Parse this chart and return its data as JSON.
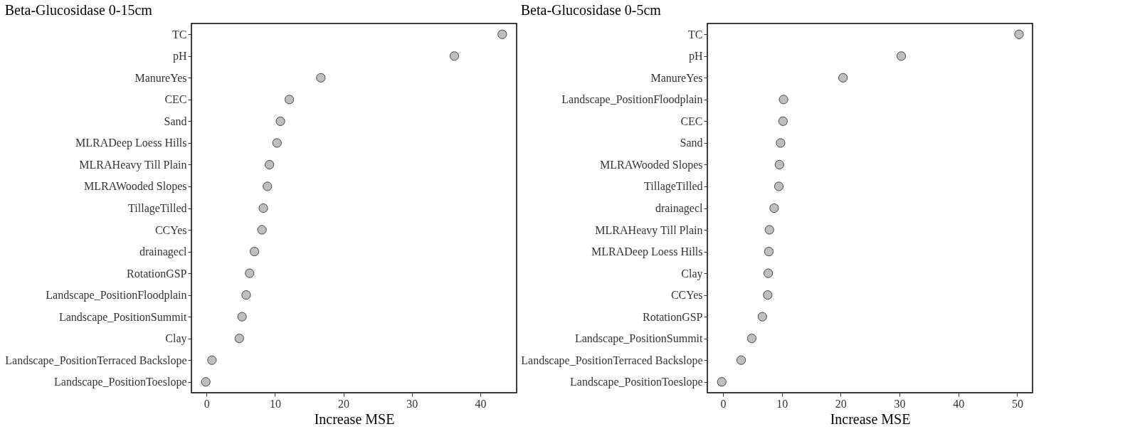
{
  "chart_data": [
    {
      "type": "scatter",
      "orientation": "horizontal",
      "title": "Beta-Glucosidase 0-15cm",
      "xlabel": "Increase MSE",
      "marker": "circle",
      "color": "#bebebe",
      "categories": [
        "TC",
        "pH",
        "ManureYes",
        "CEC",
        "Sand",
        "MLRADeep Loess Hills",
        "MLRAHeavy Till Plain",
        "MLRAWooded Slopes",
        "TillageTilled",
        "CCYes",
        "drainagecl",
        "RotationGSP",
        "Landscape_PositionFloodplain",
        "Landscape_PositionSummit",
        "Clay",
        "Landscape_PositionTerraced Backslope",
        "Landscape_PositionToeslope"
      ],
      "values": [
        43.2,
        36.2,
        16.7,
        12.1,
        10.8,
        10.3,
        9.2,
        8.9,
        8.3,
        8.1,
        7.0,
        6.3,
        5.8,
        5.2,
        4.8,
        0.8,
        -0.1
      ],
      "xlim": [
        -2.2,
        45.3
      ],
      "xticks": [
        0,
        10,
        20,
        30,
        40
      ]
    },
    {
      "type": "scatter",
      "orientation": "horizontal",
      "title": "Beta-Glucosidase 0-5cm",
      "xlabel": "Increase MSE",
      "marker": "circle",
      "color": "#bebebe",
      "categories": [
        "TC",
        "pH",
        "ManureYes",
        "Landscape_PositionFloodplain",
        "CEC",
        "Sand",
        "MLRAWooded Slopes",
        "TillageTilled",
        "drainagecl",
        "MLRAHeavy Till Plain",
        "MLRADeep Loess Hills",
        "Clay",
        "CCYes",
        "RotationGSP",
        "Landscape_PositionSummit",
        "Landscape_PositionTerraced Backslope",
        "Landscape_PositionToeslope"
      ],
      "values": [
        50.3,
        30.3,
        20.4,
        10.3,
        10.2,
        9.8,
        9.6,
        9.5,
        8.7,
        7.9,
        7.8,
        7.7,
        7.6,
        6.7,
        4.9,
        3.1,
        -0.2
      ],
      "xlim": [
        -2.65,
        52.6
      ],
      "xticks": [
        0,
        10,
        20,
        30,
        40,
        50
      ]
    }
  ]
}
